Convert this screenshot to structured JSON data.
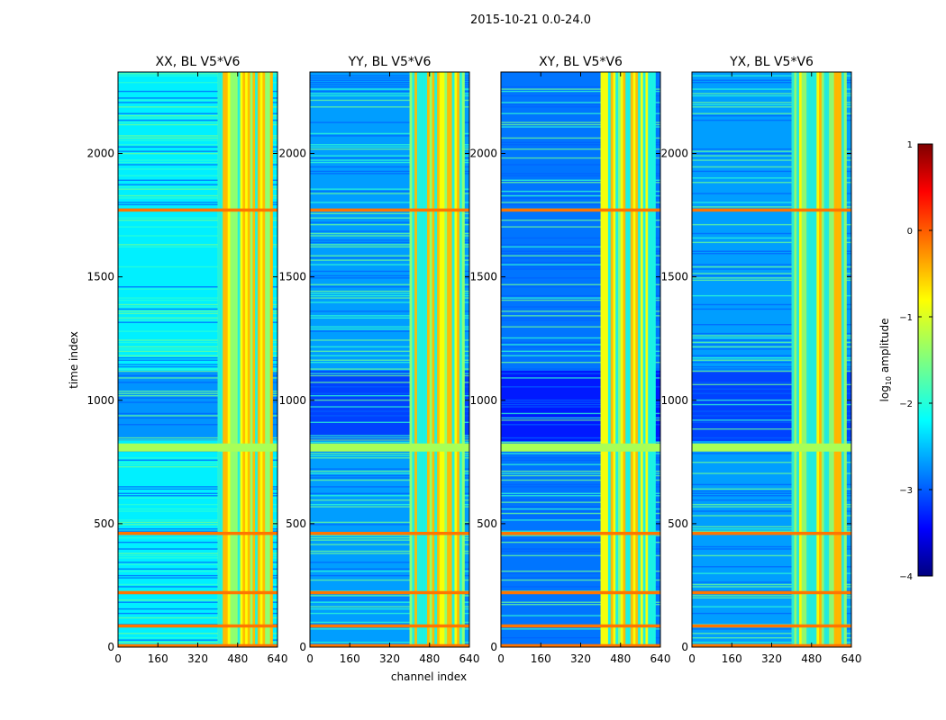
{
  "figure_title": "2015-10-21 0.0-24.0",
  "chart_data": {
    "type": "heatmap",
    "xlabel": "channel index",
    "ylabel": "time index",
    "xlim": [
      0,
      640
    ],
    "ylim": [
      0,
      2330
    ],
    "xticks": [
      "0",
      "160",
      "320",
      "480",
      "640"
    ],
    "yticks": [
      "0",
      "500",
      "1000",
      "1500",
      "2000"
    ],
    "colorbar": {
      "label_prefix": "log",
      "label_sub": "10",
      "label_suffix": " amplitude",
      "range": [
        -4,
        1
      ],
      "ticks": [
        "1",
        "0",
        "−1",
        "−2",
        "−3",
        "−4"
      ],
      "colormap": "jet"
    },
    "panels": [
      {
        "name": "xx",
        "title": "XX, BL V5*V6",
        "background_level": -2.2,
        "band_channels": [
          400,
          620
        ],
        "band_level": -0.9
      },
      {
        "name": "yy",
        "title": "YY, BL V5*V6",
        "background_level": -2.6,
        "band_channels": [
          400,
          620
        ],
        "band_level": -1.0
      },
      {
        "name": "xy",
        "title": "XY, BL V5*V6",
        "background_level": -2.8,
        "band_channels": [
          400,
          620
        ],
        "band_level": -1.1
      },
      {
        "name": "yx",
        "title": "YX, BL V5*V6",
        "background_level": -2.6,
        "band_channels": [
          400,
          620
        ],
        "band_level": -0.6
      }
    ],
    "strong_rfi_times": [
      5,
      85,
      220,
      460,
      800,
      1770
    ],
    "low_amplitude_time_range": [
      835,
      1120
    ]
  }
}
